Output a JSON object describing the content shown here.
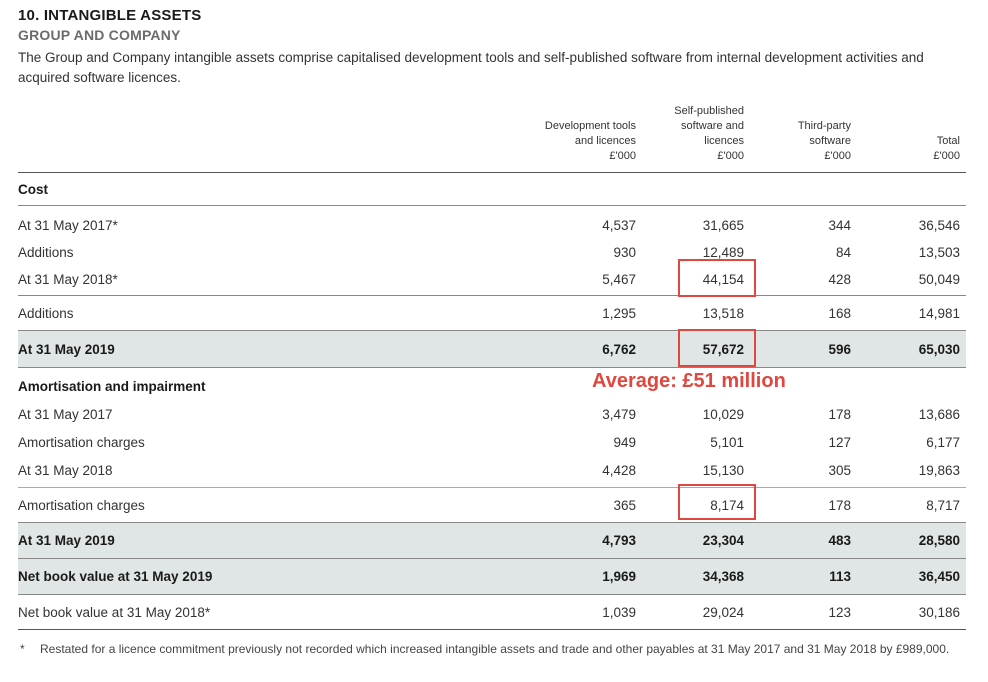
{
  "heading": {
    "title": "10. INTANGIBLE ASSETS",
    "subtitle": "GROUP AND COMPANY",
    "intro": "The Group and Company intangible assets comprise capitalised development tools and self-published software from internal development activities and acquired software licences."
  },
  "columns": [
    {
      "line1": "Development tools",
      "line2": "and licences",
      "line3": "£'000"
    },
    {
      "line0": "Self-published",
      "line1": "software and",
      "line2": "licences",
      "line3": "£'000"
    },
    {
      "line1": "Third-party",
      "line2": "software",
      "line3": "£'000"
    },
    {
      "line1": "Total",
      "line2": "£'000"
    }
  ],
  "rows": {
    "cost_header": "Cost",
    "r1": {
      "label": "At 31 May 2017*",
      "v": [
        "4,537",
        "31,665",
        "344",
        "36,546"
      ]
    },
    "r2": {
      "label": "Additions",
      "v": [
        "930",
        "12,489",
        "84",
        "13,503"
      ]
    },
    "r3": {
      "label": "At 31 May 2018*",
      "v": [
        "5,467",
        "44,154",
        "428",
        "50,049"
      ]
    },
    "r4": {
      "label": "Additions",
      "v": [
        "1,295",
        "13,518",
        "168",
        "14,981"
      ]
    },
    "r5": {
      "label": "At 31 May 2019",
      "v": [
        "6,762",
        "57,672",
        "596",
        "65,030"
      ]
    },
    "amort_header": "Amortisation and impairment",
    "r6": {
      "label": "At 31 May 2017",
      "v": [
        "3,479",
        "10,029",
        "178",
        "13,686"
      ]
    },
    "r7": {
      "label": "Amortisation charges",
      "v": [
        "949",
        "5,101",
        "127",
        "6,177"
      ]
    },
    "r8": {
      "label": "At 31 May 2018",
      "v": [
        "4,428",
        "15,130",
        "305",
        "19,863"
      ]
    },
    "r9": {
      "label": "Amortisation charges",
      "v": [
        "365",
        "8,174",
        "178",
        "8,717"
      ]
    },
    "r10": {
      "label": "At 31 May 2019",
      "v": [
        "4,793",
        "23,304",
        "483",
        "28,580"
      ]
    },
    "r11": {
      "label": "Net book value at 31 May 2019",
      "v": [
        "1,969",
        "34,368",
        "113",
        "36,450"
      ]
    },
    "r12": {
      "label": "Net book value at 31 May 2018*",
      "v": [
        "1,039",
        "29,024",
        "123",
        "30,186"
      ]
    }
  },
  "annotation": "Average: £51 million",
  "footnote": {
    "marker": "*",
    "text": "Restated for a licence commitment previously not recorded which increased intangible assets and trade and other payables at 31 May 2017 and 31 May 2018 by £989,000."
  },
  "colors": {
    "highlight": "#e0473f",
    "shade": "#dfe6e5"
  }
}
